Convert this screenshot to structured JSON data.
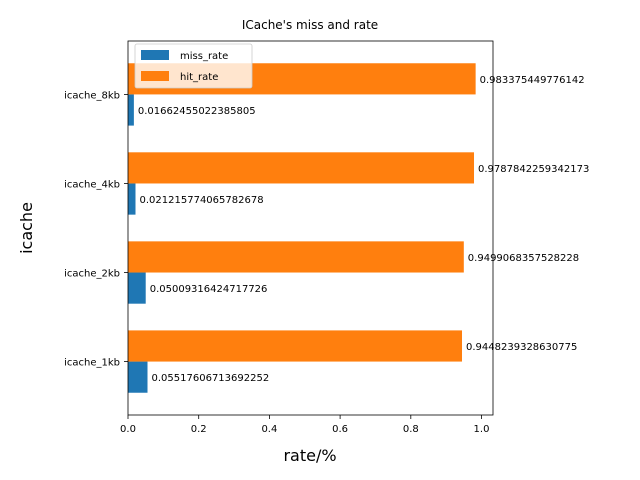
{
  "chart_data": {
    "type": "bar",
    "orientation": "horizontal",
    "title": "ICache's miss and rate",
    "xlabel": "rate/%",
    "ylabel": "icache",
    "categories": [
      "icache_1kb",
      "icache_2kb",
      "icache_4kb",
      "icache_8kb"
    ],
    "series": [
      {
        "name": "miss_rate",
        "color": "#1f77b4",
        "values": [
          0.05517606713692252,
          0.05009316424717726,
          0.021215774065782678,
          0.01662455022385805
        ],
        "labels": [
          "0.05517606713692252",
          "0.05009316424717726",
          "0.021215774065782678",
          "0.01662455022385805"
        ]
      },
      {
        "name": "hit_rate",
        "color": "#ff7f0e",
        "values": [
          0.9448239328630775,
          0.9499068357528228,
          0.9787842259342173,
          0.983375449776142
        ],
        "labels": [
          "0.9448239328630775",
          "0.9499068357528228",
          "0.9787842259342173",
          "0.983375449776142"
        ]
      }
    ],
    "xlim": [
      0,
      1.0325
    ],
    "xticks": [
      0.0,
      0.2,
      0.4,
      0.6,
      0.8,
      1.0
    ],
    "xtick_labels": [
      "0.0",
      "0.2",
      "0.4",
      "0.6",
      "0.8",
      "1.0"
    ],
    "grid": false,
    "legend_position": "upper-left"
  }
}
